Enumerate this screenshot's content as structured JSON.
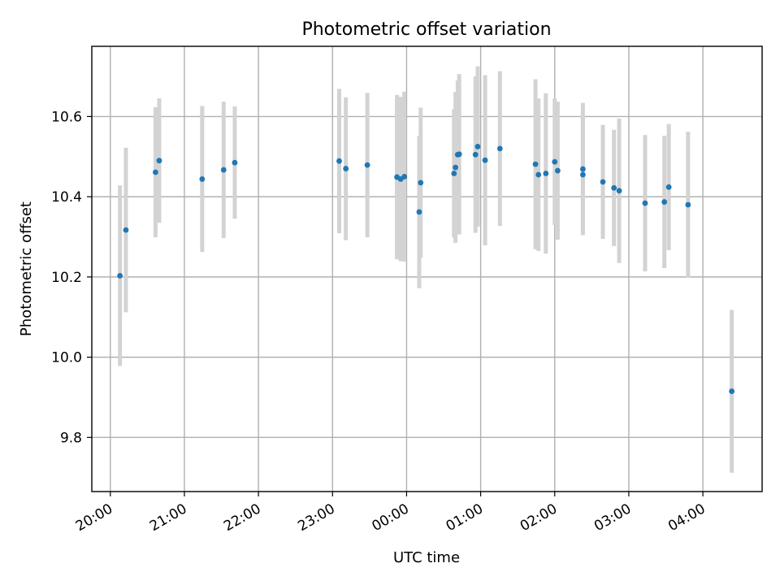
{
  "chart_data": {
    "type": "scatter",
    "title": "Photometric offset variation",
    "xlabel": "UTC time",
    "ylabel": "Photometric offset",
    "x_tick_hours": [
      20,
      21,
      22,
      23,
      24,
      25,
      26,
      27,
      28
    ],
    "x_tick_labels": [
      "20:00",
      "21:00",
      "22:00",
      "23:00",
      "00:00",
      "01:00",
      "02:00",
      "03:00",
      "04:00"
    ],
    "y_ticks": [
      9.8,
      10.0,
      10.2,
      10.4,
      10.6
    ],
    "y_tick_labels": [
      "9.8",
      "10.0",
      "10.2",
      "10.4",
      "10.6"
    ],
    "xlim_hours": [
      19.75,
      28.8
    ],
    "ylim": [
      9.665,
      10.775
    ],
    "grid": true,
    "series": [
      {
        "points": [
          {
            "t": 20.13,
            "y": 10.203,
            "err": 0.225
          },
          {
            "t": 20.21,
            "y": 10.317,
            "err": 0.205
          },
          {
            "t": 20.61,
            "y": 10.461,
            "err": 0.162
          },
          {
            "t": 20.66,
            "y": 10.49,
            "err": 0.155
          },
          {
            "t": 21.24,
            "y": 10.444,
            "err": 0.182
          },
          {
            "t": 21.53,
            "y": 10.467,
            "err": 0.17
          },
          {
            "t": 21.68,
            "y": 10.485,
            "err": 0.14
          },
          {
            "t": 23.09,
            "y": 10.489,
            "err": 0.18
          },
          {
            "t": 23.18,
            "y": 10.47,
            "err": 0.178
          },
          {
            "t": 23.47,
            "y": 10.479,
            "err": 0.18
          },
          {
            "t": 23.87,
            "y": 10.449,
            "err": 0.205
          },
          {
            "t": 23.92,
            "y": 10.444,
            "err": 0.205
          },
          {
            "t": 23.97,
            "y": 10.45,
            "err": 0.212
          },
          {
            "t": 24.17,
            "y": 10.362,
            "err": 0.19
          },
          {
            "t": 24.19,
            "y": 10.435,
            "err": 0.187
          },
          {
            "t": 24.64,
            "y": 10.458,
            "err": 0.16
          },
          {
            "t": 24.66,
            "y": 10.473,
            "err": 0.188
          },
          {
            "t": 24.69,
            "y": 10.505,
            "err": 0.185
          },
          {
            "t": 24.71,
            "y": 10.506,
            "err": 0.2
          },
          {
            "t": 24.93,
            "y": 10.505,
            "err": 0.195
          },
          {
            "t": 24.96,
            "y": 10.525,
            "err": 0.2
          },
          {
            "t": 25.06,
            "y": 10.491,
            "err": 0.212
          },
          {
            "t": 25.26,
            "y": 10.52,
            "err": 0.193
          },
          {
            "t": 25.74,
            "y": 10.481,
            "err": 0.212
          },
          {
            "t": 25.78,
            "y": 10.455,
            "err": 0.19
          },
          {
            "t": 25.88,
            "y": 10.458,
            "err": 0.2
          },
          {
            "t": 26.0,
            "y": 10.487,
            "err": 0.158
          },
          {
            "t": 26.04,
            "y": 10.465,
            "err": 0.172
          },
          {
            "t": 26.38,
            "y": 10.455,
            "err": 0.15
          },
          {
            "t": 26.38,
            "y": 10.469,
            "err": 0.165
          },
          {
            "t": 26.65,
            "y": 10.437,
            "err": 0.142
          },
          {
            "t": 26.8,
            "y": 10.422,
            "err": 0.145
          },
          {
            "t": 26.87,
            "y": 10.415,
            "err": 0.18
          },
          {
            "t": 27.22,
            "y": 10.384,
            "err": 0.17
          },
          {
            "t": 27.48,
            "y": 10.387,
            "err": 0.165
          },
          {
            "t": 27.54,
            "y": 10.424,
            "err": 0.157
          },
          {
            "t": 27.8,
            "y": 10.38,
            "err": 0.182
          },
          {
            "t": 28.39,
            "y": 9.915,
            "err": 0.203
          }
        ]
      }
    ]
  }
}
